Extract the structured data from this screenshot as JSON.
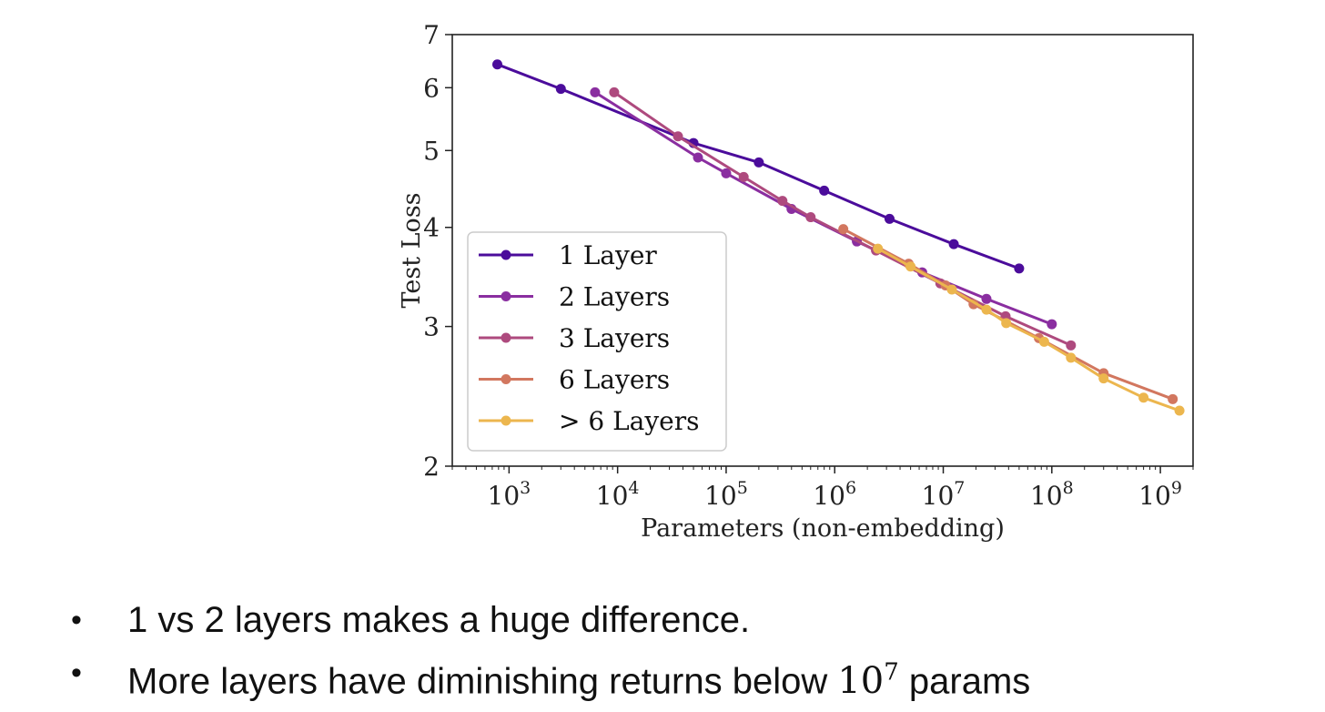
{
  "chart_data": {
    "type": "line",
    "title": "",
    "xlabel": "Parameters (non-embedding)",
    "ylabel": "Test Loss",
    "xscale": "log",
    "yscale": "log",
    "xlim": [
      300,
      2000000000
    ],
    "ylim": [
      2,
      7
    ],
    "x_ticks": [
      {
        "base": "10",
        "exp": "3",
        "value": 1000
      },
      {
        "base": "10",
        "exp": "4",
        "value": 10000
      },
      {
        "base": "10",
        "exp": "5",
        "value": 100000
      },
      {
        "base": "10",
        "exp": "6",
        "value": 1000000
      },
      {
        "base": "10",
        "exp": "7",
        "value": 10000000
      },
      {
        "base": "10",
        "exp": "8",
        "value": 100000000
      },
      {
        "base": "10",
        "exp": "9",
        "value": 1000000000
      }
    ],
    "y_ticks": [
      {
        "label": "2",
        "value": 2
      },
      {
        "label": "3",
        "value": 3
      },
      {
        "label": "4",
        "value": 4
      },
      {
        "label": "5",
        "value": 5
      },
      {
        "label": "6",
        "value": 6
      },
      {
        "label": "7",
        "value": 7
      }
    ],
    "grid": false,
    "legend_position": "lower-left",
    "series": [
      {
        "name": "1 Layer",
        "color": "#4b0c9b",
        "points": [
          [
            780,
            6.42
          ],
          [
            3000,
            5.98
          ],
          [
            50000,
            5.11
          ],
          [
            200000,
            4.83
          ],
          [
            800000,
            4.45
          ],
          [
            3200000,
            4.1
          ],
          [
            12500000,
            3.81
          ],
          [
            50000000,
            3.55
          ]
        ]
      },
      {
        "name": "2 Layers",
        "color": "#8a2ea0",
        "points": [
          [
            6200,
            5.92
          ],
          [
            55000,
            4.9
          ],
          [
            100000,
            4.68
          ],
          [
            400000,
            4.22
          ],
          [
            1600000,
            3.84
          ],
          [
            6400000,
            3.51
          ],
          [
            25000000,
            3.25
          ],
          [
            100000000,
            3.02
          ]
        ]
      },
      {
        "name": "3 Layers",
        "color": "#ae4a7e",
        "points": [
          [
            9300,
            5.92
          ],
          [
            36000,
            5.21
          ],
          [
            145000,
            4.63
          ],
          [
            330000,
            4.32
          ],
          [
            600000,
            4.12
          ],
          [
            2400000,
            3.74
          ],
          [
            9400000,
            3.4
          ],
          [
            37500000,
            3.09
          ],
          [
            150000000,
            2.84
          ]
        ]
      },
      {
        "name": "6 Layers",
        "color": "#d2775f",
        "points": [
          [
            1200000,
            3.98
          ],
          [
            4800000,
            3.6
          ],
          [
            10500000,
            3.38
          ],
          [
            19000000,
            3.2
          ],
          [
            76000000,
            2.9
          ],
          [
            300000000,
            2.62
          ],
          [
            1300000000,
            2.43
          ]
        ]
      },
      {
        "name": "> 6 Layers",
        "color": "#ecb64e",
        "points": [
          [
            2500000,
            3.76
          ],
          [
            5000000,
            3.57
          ],
          [
            12000000,
            3.34
          ],
          [
            25000000,
            3.15
          ],
          [
            38000000,
            3.03
          ],
          [
            85000000,
            2.87
          ],
          [
            150000000,
            2.74
          ],
          [
            300000000,
            2.58
          ],
          [
            700000000,
            2.44
          ],
          [
            1500000000,
            2.35
          ]
        ]
      }
    ]
  },
  "bullets": [
    {
      "text": "1 vs 2 layers makes a huge difference."
    },
    {
      "text": "More layers have diminishing returns below ",
      "math_base": "10",
      "math_exp": "7",
      "suffix": " params"
    }
  ]
}
